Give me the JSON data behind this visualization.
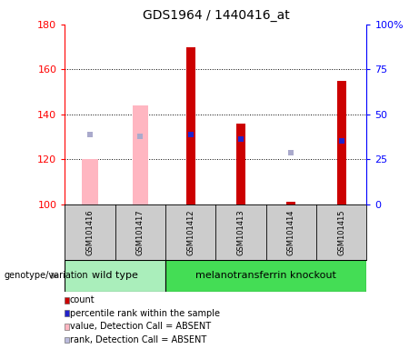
{
  "title": "GDS1964 / 1440416_at",
  "samples": [
    "GSM101416",
    "GSM101417",
    "GSM101412",
    "GSM101413",
    "GSM101414",
    "GSM101415"
  ],
  "ylim_left": [
    100,
    180
  ],
  "yticks_left": [
    100,
    120,
    140,
    160,
    180
  ],
  "yticks_right": [
    0,
    25,
    50,
    75,
    100
  ],
  "ytick_labels_right": [
    "0",
    "25",
    "50",
    "75",
    "100%"
  ],
  "bar_base": 100,
  "red_bars": {
    "GSM101416": null,
    "GSM101417": null,
    "GSM101412": 170,
    "GSM101413": 136,
    "GSM101414": 101,
    "GSM101415": 155
  },
  "blue_markers_val": {
    "GSM101416": null,
    "GSM101417": null,
    "GSM101412": 131,
    "GSM101413": 129,
    "GSM101414": null,
    "GSM101415": 128
  },
  "pink_bars": {
    "GSM101416": 120,
    "GSM101417": 144,
    "GSM101412": null,
    "GSM101413": null,
    "GSM101414": null,
    "GSM101415": null
  },
  "lightblue_markers_val": {
    "GSM101416": 131,
    "GSM101417": 130,
    "GSM101412": null,
    "GSM101413": null,
    "GSM101414": 123,
    "GSM101415": null
  },
  "group_ranges": [
    {
      "start": 0,
      "end": 1,
      "label": "wild type",
      "color": "#AAEEBB"
    },
    {
      "start": 2,
      "end": 5,
      "label": "melanotransferrin knockout",
      "color": "#44DD55"
    }
  ],
  "legend": [
    {
      "color": "#CC0000",
      "label": "count"
    },
    {
      "color": "#2222CC",
      "label": "percentile rank within the sample"
    },
    {
      "color": "#FFB6C1",
      "label": "value, Detection Call = ABSENT"
    },
    {
      "color": "#BBBBDD",
      "label": "rank, Detection Call = ABSENT"
    }
  ],
  "pink_bar_width": 0.32,
  "red_bar_width": 0.18,
  "marker_size": 4,
  "cell_bg": "#CCCCCC",
  "plot_bg": "#FFFFFF",
  "title_fontsize": 10,
  "tick_fontsize": 8,
  "sample_fontsize": 6,
  "legend_fontsize": 7,
  "group_fontsize": 8
}
